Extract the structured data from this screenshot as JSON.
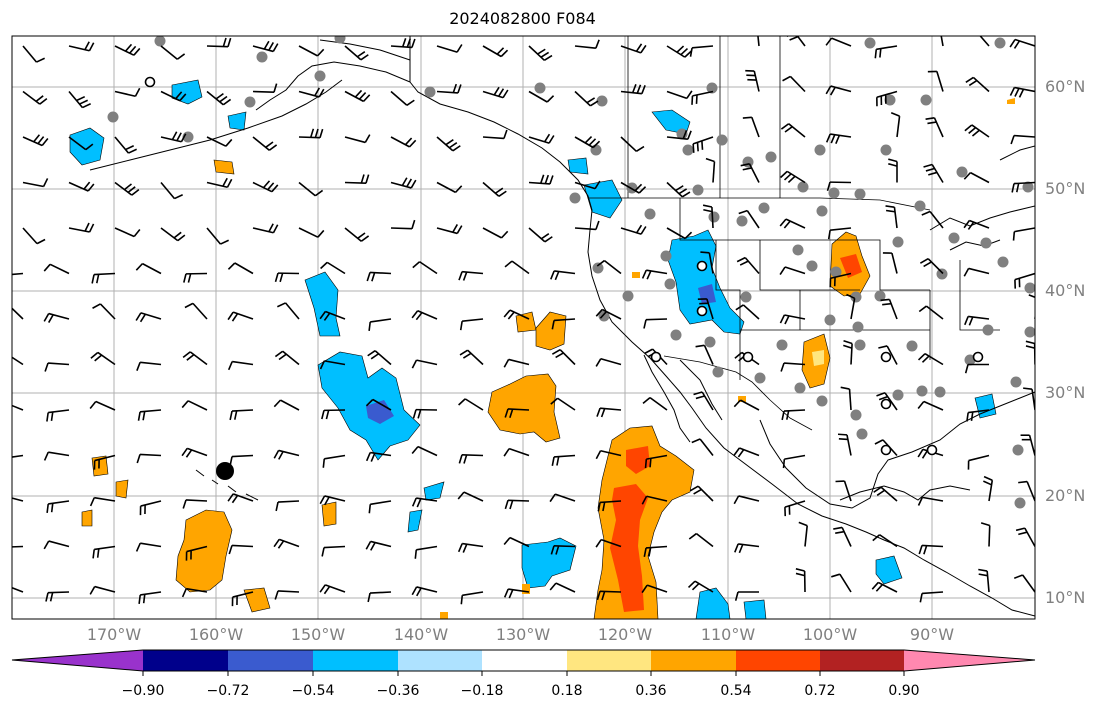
{
  "title": "2024082800 F084",
  "lat_labels": [
    "60°N",
    "50°N",
    "40°N",
    "30°N",
    "20°N",
    "10°N"
  ],
  "lon_labels": [
    "170°W",
    "160°W",
    "150°W",
    "140°W",
    "130°W",
    "120°W",
    "110°W",
    "100°W",
    "90°W"
  ],
  "colorbar": {
    "tick_labels": [
      "−0.90",
      "−0.72",
      "−0.54",
      "−0.36",
      "−0.18",
      "0.18",
      "0.36",
      "0.54",
      "0.72",
      "0.90"
    ],
    "colors": [
      "#9932cc",
      "#00008b",
      "#3a5bcf",
      "#00bfff",
      "#aee2ff",
      "#ffffff",
      "#ffe680",
      "#ffa500",
      "#ff4500",
      "#b22222",
      "#ff88b0"
    ]
  },
  "map": {
    "extent": {
      "lon_min": -180,
      "lon_max": -80,
      "lat_min": 8,
      "lat_max": 65
    },
    "gridline_color": "#b0b0b0",
    "station_marker_color": "#808080"
  }
}
